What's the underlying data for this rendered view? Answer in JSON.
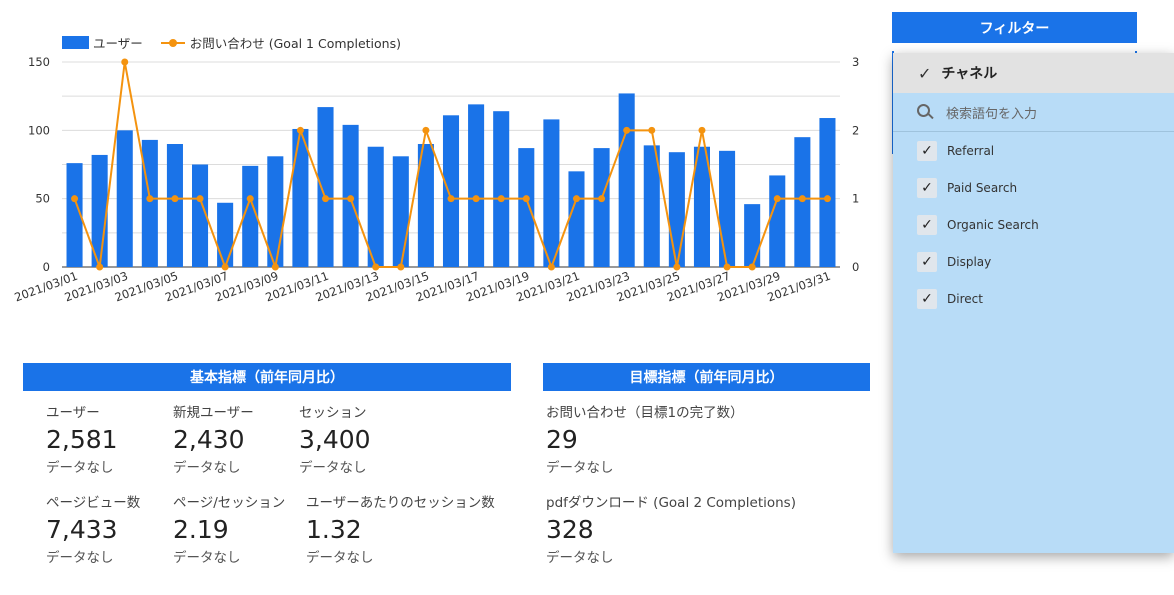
{
  "chart_data": {
    "type": "bar",
    "categories": [
      "2021/03/01",
      "2021/03/02",
      "2021/03/03",
      "2021/03/04",
      "2021/03/05",
      "2021/03/06",
      "2021/03/07",
      "2021/03/08",
      "2021/03/09",
      "2021/03/10",
      "2021/03/11",
      "2021/03/12",
      "2021/03/13",
      "2021/03/14",
      "2021/03/15",
      "2021/03/16",
      "2021/03/17",
      "2021/03/18",
      "2021/03/19",
      "2021/03/20",
      "2021/03/21",
      "2021/03/22",
      "2021/03/23",
      "2021/03/24",
      "2021/03/25",
      "2021/03/26",
      "2021/03/27",
      "2021/03/28",
      "2021/03/29",
      "2021/03/30",
      "2021/03/31"
    ],
    "x_tick_labels": [
      "2021/03/01",
      "2021/03/03",
      "2021/03/05",
      "2021/03/07",
      "2021/03/09",
      "2021/03/11",
      "2021/03/13",
      "2021/03/15",
      "2021/03/17",
      "2021/03/19",
      "2021/03/21",
      "2021/03/23",
      "2021/03/25",
      "2021/03/27",
      "2021/03/29",
      "2021/03/31"
    ],
    "series": [
      {
        "name": "ユーザー",
        "kind": "bar",
        "axis": "left",
        "color": "#1a73e8",
        "values": [
          76,
          82,
          100,
          93,
          90,
          75,
          47,
          74,
          81,
          101,
          117,
          104,
          88,
          81,
          90,
          111,
          119,
          114,
          87,
          108,
          70,
          87,
          127,
          89,
          84,
          88,
          85,
          46,
          67,
          95,
          109
        ]
      },
      {
        "name": "お問い合わせ (Goal 1 Completions)",
        "kind": "line",
        "axis": "right",
        "color": "#f4930f",
        "values": [
          1,
          0,
          3,
          1,
          1,
          1,
          0,
          1,
          0,
          2,
          1,
          1,
          0,
          0,
          2,
          1,
          1,
          1,
          1,
          0,
          1,
          1,
          2,
          2,
          0,
          2,
          0,
          0,
          1,
          1,
          1
        ]
      }
    ],
    "y_left": {
      "ylim": [
        0,
        150
      ],
      "ticks": [
        "0",
        "50",
        "100",
        "150"
      ]
    },
    "y_right": {
      "ylim": [
        0,
        3
      ],
      "ticks": [
        "0",
        "1",
        "2",
        "3"
      ]
    },
    "legend_position": "top-left",
    "grid": true
  },
  "basic": {
    "title": "基本指標（前年同月比）",
    "metrics": [
      {
        "label": "ユーザー",
        "value": "2,581",
        "sub": "データなし"
      },
      {
        "label": "新規ユーザー",
        "value": "2,430",
        "sub": "データなし"
      },
      {
        "label": "セッション",
        "value": "3,400",
        "sub": "データなし"
      },
      {
        "label": "ページビュー数",
        "value": "7,433",
        "sub": "データなし"
      },
      {
        "label": "ページ/セッション",
        "value": "2.19",
        "sub": "データなし"
      },
      {
        "label": "ユーザーあたりのセッション数",
        "value": "1.32",
        "sub": "データなし"
      }
    ]
  },
  "goals": {
    "title": "目標指標（前年同月比）",
    "metrics": [
      {
        "label": "お問い合わせ（目標1の完了数）",
        "value": "29",
        "sub": "データなし"
      },
      {
        "label": "pdfダウンロード (Goal 2 Completions)",
        "value": "328",
        "sub": "データなし"
      }
    ]
  },
  "filter": {
    "button_label": "フィルター",
    "dimension_label": "チャネル",
    "search_placeholder": "検索語句を入力",
    "items": [
      {
        "label": "Referral",
        "checked": true
      },
      {
        "label": "Paid Search",
        "checked": true
      },
      {
        "label": "Organic Search",
        "checked": true
      },
      {
        "label": "Display",
        "checked": true
      },
      {
        "label": "Direct",
        "checked": true
      }
    ]
  }
}
